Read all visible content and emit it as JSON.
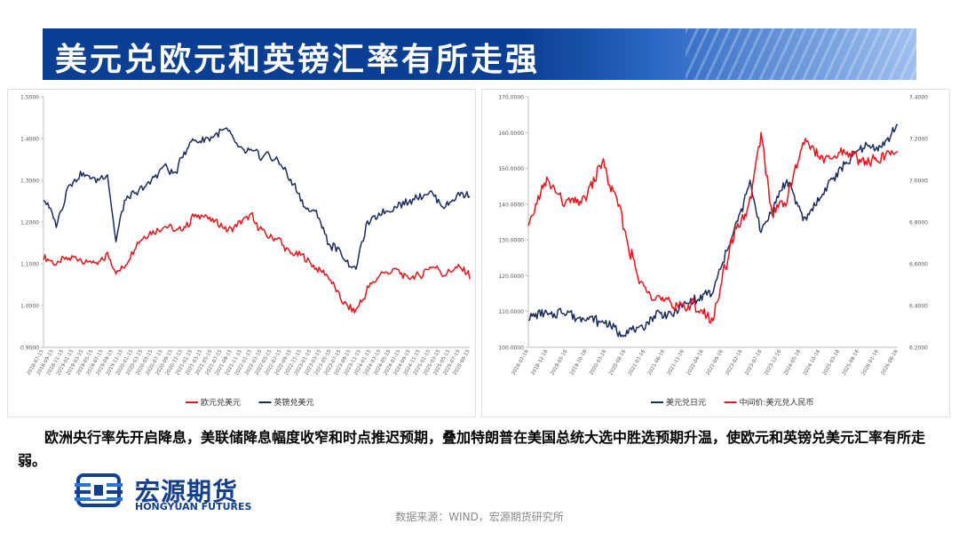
{
  "title": "美元兑欧元和英镑汇率有所走强",
  "caption": "欧洲央行率先开启降息，美联储降息幅度收窄和时点推迟预期，叠加特朗普在美国总统大选中胜选预期升温，使欧元和英镑兑美元汇率有所走弱。",
  "logo": {
    "cn": "宏源期货",
    "en": "HONGYUAN FUTURES",
    "icon": "hongyuan-logo-icon"
  },
  "source": "数据来源：WIND，宏源期货研究所",
  "colors": {
    "banner": "#0b3f93",
    "red": "#e8141b",
    "navy": "#1a2b5e"
  },
  "chart_data": [
    {
      "type": "line",
      "ylim": [
        0.9,
        1.5
      ],
      "yticks": [
        "0.9000",
        "1.0000",
        "1.1000",
        "1.2000",
        "1.3000",
        "1.4000",
        "1.5000"
      ],
      "xticks": [
        "2018-07-15",
        "2018-09-15",
        "2018-11-15",
        "2019-01-15",
        "2019-03-15",
        "2019-05-15",
        "2019-07-15",
        "2019-09-15",
        "2019-11-15",
        "2020-01-15",
        "2020-03-15",
        "2020-05-15",
        "2020-07-15",
        "2020-09-15",
        "2020-11-15",
        "2021-01-15",
        "2021-03-15",
        "2021-05-15",
        "2021-07-15",
        "2021-09-15",
        "2021-11-15",
        "2022-01-15",
        "2022-03-15",
        "2022-05-15",
        "2022-07-15",
        "2022-09-15",
        "2022-11-15",
        "2023-01-15",
        "2023-03-15",
        "2023-05-15",
        "2023-07-15",
        "2023-09-15",
        "2023-11-15",
        "2024-01-15",
        "2024-03-15",
        "2024-05-15",
        "2024-07-15",
        "2024-09-15",
        "2024-11-15",
        "2025-01-15",
        "2025-03-15",
        "2025-05-15",
        "2025-07-15",
        "2025-09-15"
      ],
      "x": [
        0,
        3,
        6,
        9,
        12,
        15,
        17,
        19,
        22,
        25,
        28,
        31,
        34,
        37,
        40,
        43,
        46,
        49,
        52,
        55,
        58,
        61,
        64,
        67,
        70,
        73,
        76,
        79,
        82,
        85,
        88,
        91,
        94,
        97,
        100
      ],
      "series": [
        {
          "name": "欧元兑美元",
          "color": "#e8141b",
          "values": [
            1.12,
            1.1,
            1.11,
            1.11,
            1.1,
            1.12,
            1.08,
            1.1,
            1.15,
            1.18,
            1.19,
            1.18,
            1.2,
            1.22,
            1.2,
            1.18,
            1.2,
            1.21,
            1.17,
            1.16,
            1.13,
            1.12,
            1.09,
            1.07,
            1.01,
            0.98,
            1.04,
            1.07,
            1.09,
            1.06,
            1.07,
            1.09,
            1.08,
            1.09,
            1.07
          ]
        },
        {
          "name": "英镑兑美元",
          "color": "#1a2b5e",
          "values": [
            1.25,
            1.2,
            1.29,
            1.32,
            1.3,
            1.31,
            1.15,
            1.25,
            1.27,
            1.29,
            1.33,
            1.32,
            1.39,
            1.39,
            1.41,
            1.42,
            1.38,
            1.36,
            1.36,
            1.35,
            1.3,
            1.24,
            1.22,
            1.15,
            1.12,
            1.08,
            1.2,
            1.22,
            1.23,
            1.25,
            1.26,
            1.27,
            1.24,
            1.26,
            1.27
          ]
        }
      ]
    },
    {
      "type": "line",
      "ylim_left": [
        100,
        170
      ],
      "ylim_right": [
        6.2,
        7.4
      ],
      "yticks_left": [
        "100.0000",
        "110.0000",
        "120.0000",
        "130.0000",
        "140.0000",
        "150.0000",
        "160.0000",
        "170.0000"
      ],
      "yticks_right": [
        "6.2000",
        "6.4000",
        "6.6000",
        "6.8000",
        "7.0000",
        "7.2000",
        "7.4000"
      ],
      "xticks": [
        "2018-07-16",
        "2018-12-16",
        "2019-05-16",
        "2019-10-16",
        "2020-03-16",
        "2020-08-16",
        "2021-01-16",
        "2021-06-16",
        "2021-11-16",
        "2022-04-16",
        "2022-09-16",
        "2023-02-16",
        "2023-07-16",
        "2023-12-16",
        "2024-05-16",
        "2024-10-16",
        "2025-03-16",
        "2025-08-16",
        "2026-01-16",
        "2026-06-16"
      ],
      "x": [
        0,
        5,
        10,
        15,
        20,
        25,
        30,
        35,
        40,
        45,
        50,
        55,
        60,
        63,
        66,
        70,
        75,
        80,
        85,
        90,
        95,
        100
      ],
      "series": [
        {
          "name": "美元兑日元",
          "axis": "left",
          "color": "#1a2b5e",
          "values": [
            108,
            109,
            110,
            108,
            107,
            104,
            105,
            109,
            110,
            113,
            115,
            131,
            145,
            133,
            138,
            147,
            135,
            144,
            150,
            156,
            155,
            162
          ]
        },
        {
          "name": "中间价:美元兑人民币",
          "axis": "right",
          "color": "#e8141b",
          "values": [
            6.78,
            7.0,
            6.9,
            6.92,
            7.08,
            6.85,
            6.5,
            6.45,
            6.4,
            6.4,
            6.35,
            6.7,
            6.9,
            7.2,
            6.85,
            6.92,
            7.18,
            7.1,
            7.13,
            7.1,
            7.1,
            7.12
          ]
        }
      ]
    }
  ]
}
